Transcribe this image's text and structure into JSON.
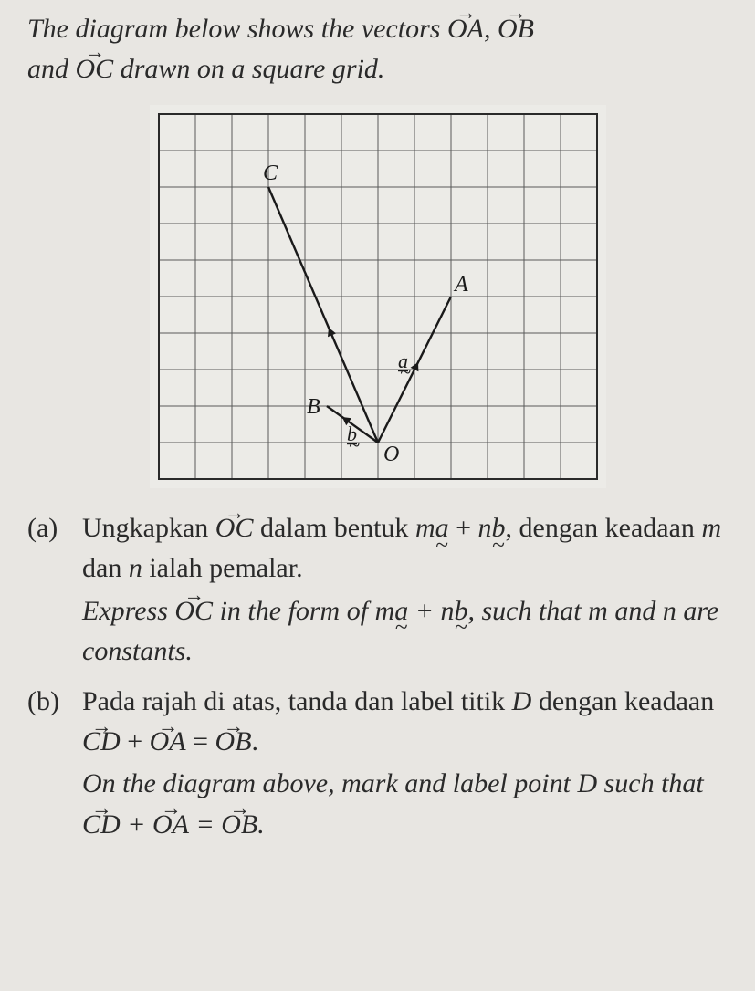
{
  "intro": {
    "line1_prefix": "The diagram below shows the vectors ",
    "vecOA": "OA",
    "sep": ", ",
    "vecOB": "OB",
    "line2_prefix": "and ",
    "vecOC": "OC",
    "line2_suffix": " drawn on a square grid."
  },
  "diagram": {
    "cols": 12,
    "rows": 10,
    "cell": 40,
    "pad": 10,
    "grid_color": "#5a5a5a",
    "outer_color": "#2a2a2a",
    "bg": "#ecebe7",
    "O": {
      "gx": 6,
      "gy": 9,
      "label": "O"
    },
    "A": {
      "gx": 8,
      "gy": 5,
      "label": "A"
    },
    "B": {
      "gx": 4.6,
      "gy": 8,
      "label": "B"
    },
    "C": {
      "gx": 3,
      "gy": 2,
      "label": "C"
    },
    "a_label": "a",
    "b_label": "b",
    "vec_color": "#1a1a1a",
    "vec_width": 2.4,
    "arrow_size": 9
  },
  "qa": {
    "mark": "(a)",
    "ms_part1": "Ungkapkan ",
    "ms_vec": "OC",
    "ms_part2": " dalam bentuk ",
    "ms_expr_m": "m",
    "ms_expr_a": "a",
    "ms_expr_plus": " + ",
    "ms_expr_n": "n",
    "ms_expr_b": "b",
    "ms_part3": ", dengan keadaan ",
    "ms_m": "m",
    "ms_and": " dan ",
    "ms_n": "n",
    "ms_part4": " ialah pemalar.",
    "en_part1": "Express ",
    "en_vec": "OC",
    "en_part2": " in the form of ",
    "en_expr_m": "m",
    "en_expr_a": "a",
    "en_expr_plus": " + ",
    "en_expr_n": "n",
    "en_expr_b": "b",
    "en_part3": ", such that ",
    "en_m": "m",
    "en_and2": " and ",
    "en_n": "n",
    "en_part4": " are constants."
  },
  "qb": {
    "mark": "(b)",
    "ms_part1": "Pada rajah di atas, tanda dan label titik ",
    "ms_D": "D",
    "ms_part2": " dengan keadaan ",
    "vecCD": "CD",
    "plus": " + ",
    "vecOA": "OA",
    "eq": " = ",
    "vecOB": "OB",
    "period": ".",
    "en_part1": "On the diagram above, mark and label point ",
    "en_D": "D",
    "en_part2": " such that "
  }
}
